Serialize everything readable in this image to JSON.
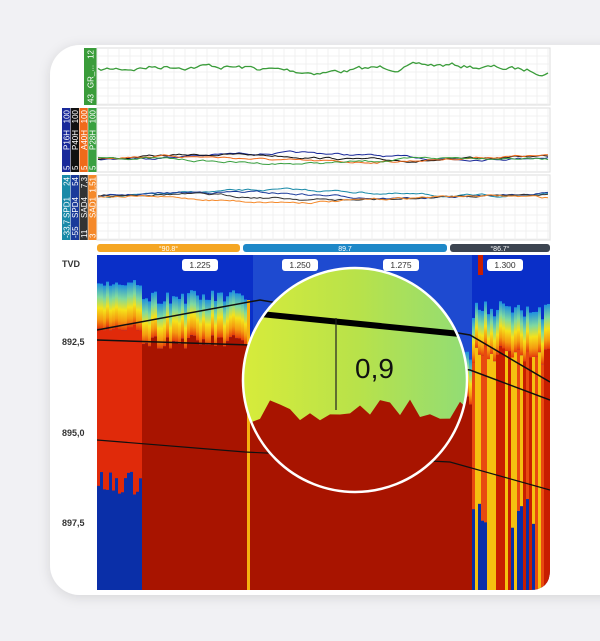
{
  "tracks": [
    {
      "curves": [
        {
          "min": "43",
          "name": "GR_...",
          "max": "12"
        }
      ]
    },
    {
      "curves": [
        {
          "min": "5",
          "name": "P16H",
          "max": "100"
        },
        {
          "min": "5",
          "name": "P40H",
          "max": "100"
        },
        {
          "min": "5",
          "name": "A40H",
          "max": "100"
        },
        {
          "min": "5",
          "name": "P28H",
          "max": "100"
        }
      ]
    },
    {
      "curves": [
        {
          "min": "-33,7",
          "name": "SPD1",
          "max": "24"
        },
        {
          "min": "-55",
          "name": "SPD4",
          "max": "54"
        },
        {
          "min": "11",
          "name": "SAD4",
          "max": "7,3"
        },
        {
          "min": "3",
          "name": "SAD1",
          "max": "1,51"
        }
      ]
    }
  ],
  "angle_bar": [
    "°90.8°",
    "89.7",
    "°86.7°"
  ],
  "depth_axis": {
    "title": "TVD",
    "labels": [
      "892,5",
      "895,0",
      "897,5"
    ]
  },
  "ruler_labels": [
    "1.225",
    "1.250",
    "1.275",
    "1.300"
  ],
  "magnifier": {
    "value": "0,9"
  }
}
